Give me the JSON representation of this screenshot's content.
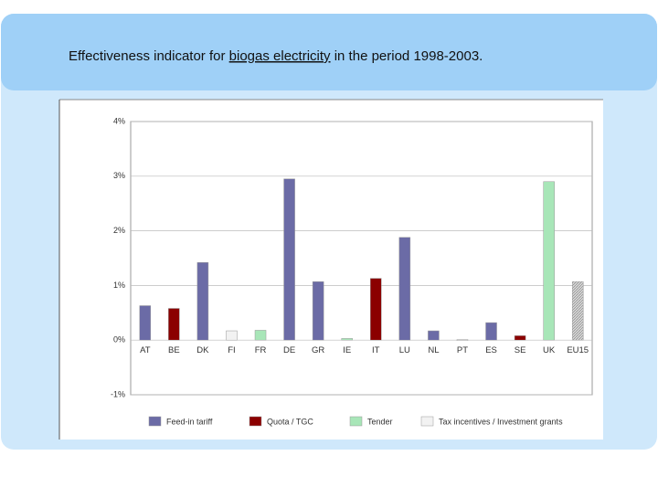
{
  "header": {
    "title": {
      "before": "Effectiveness indicator for ",
      "emphasis": "biogas electricity",
      "after": " in the period 1998-2003."
    }
  },
  "chart_data": {
    "type": "bar",
    "categories": [
      "AT",
      "BE",
      "DK",
      "FI",
      "FR",
      "DE",
      "GR",
      "IE",
      "IT",
      "LU",
      "NL",
      "PT",
      "ES",
      "SE",
      "UK",
      "EU15"
    ],
    "values": [
      0.63,
      0.58,
      1.42,
      0.17,
      0.18,
      2.95,
      1.07,
      0.03,
      1.13,
      1.88,
      0.17,
      0.01,
      0.32,
      0.08,
      2.9,
      1.07
    ],
    "colors": [
      "#6b6ba6",
      "#8b0000",
      "#6b6ba6",
      "#f2f2f2",
      "#a8e6b8",
      "#6b6ba6",
      "#6b6ba6",
      "#a8e6b8",
      "#8b0000",
      "#6b6ba6",
      "#6b6ba6",
      "#f2f2f2",
      "#6b6ba6",
      "#8b0000",
      "#a8e6b8",
      "#c8c8c8"
    ],
    "ylim": [
      -1,
      4
    ],
    "yticks": [
      {
        "value": -1,
        "label": "-1%"
      },
      {
        "value": 0,
        "label": "0%"
      },
      {
        "value": 1,
        "label": "1%"
      },
      {
        "value": 2,
        "label": "2%"
      },
      {
        "value": 3,
        "label": "3%"
      },
      {
        "value": 4,
        "label": "4%"
      }
    ],
    "grid": true,
    "legend": [
      {
        "name": "Feed-in tariff",
        "color": "#6b6ba6"
      },
      {
        "name": "Quota / TGC",
        "color": "#8b0000"
      },
      {
        "name": "Tender",
        "color": "#a8e6b8"
      },
      {
        "name": "Tax incentives / Investment grants",
        "color": "#f2f2f2"
      }
    ]
  }
}
